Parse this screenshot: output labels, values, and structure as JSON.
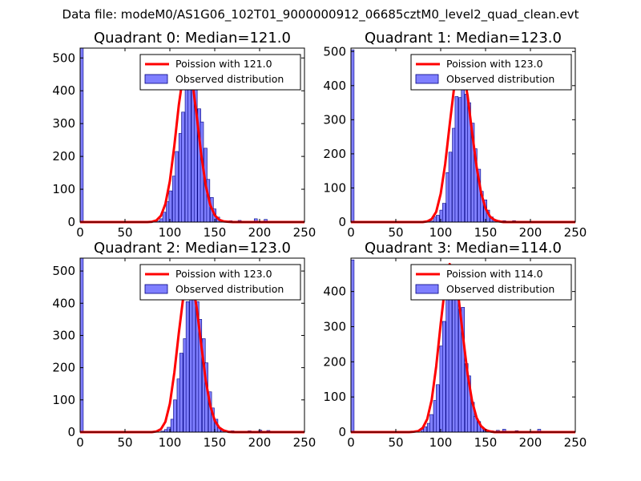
{
  "figure": {
    "suptitle": "Data file: modeM0/AS1G06_102T01_9000000912_06685cztM0_level2_quad_clean.evt",
    "legend_poisson_prefix": "Poission with",
    "legend_observed": "Observed distribution",
    "colors": {
      "poisson": "#ff0000",
      "observed_fill": "#7f7fff",
      "observed_edge": "#000080"
    }
  },
  "chart_data": [
    {
      "type": "bar+line",
      "title": "Quadrant 0: Median=121.0",
      "median": 121.0,
      "legend_poisson": "Poission with 121.0",
      "xlim": [
        0,
        250
      ],
      "ylim": [
        0,
        530
      ],
      "xticks": [
        0,
        50,
        100,
        150,
        200,
        250
      ],
      "yticks": [
        0,
        100,
        200,
        300,
        400,
        500
      ],
      "zero_bin": 530,
      "bin_width": 3.5,
      "observed": [
        [
          85,
          3
        ],
        [
          89,
          10
        ],
        [
          92,
          30
        ],
        [
          96,
          62
        ],
        [
          99,
          95
        ],
        [
          103,
          140
        ],
        [
          106,
          215
        ],
        [
          110,
          270
        ],
        [
          113,
          335
        ],
        [
          117,
          420
        ],
        [
          120,
          465
        ],
        [
          124,
          470
        ],
        [
          127,
          425
        ],
        [
          131,
          345
        ],
        [
          134,
          305
        ],
        [
          138,
          225
        ],
        [
          141,
          130
        ],
        [
          145,
          75
        ],
        [
          148,
          40
        ],
        [
          152,
          15
        ],
        [
          155,
          5
        ],
        [
          159,
          3
        ],
        [
          166,
          4
        ],
        [
          176,
          5
        ],
        [
          194,
          10
        ],
        [
          205,
          8
        ]
      ],
      "poisson_x": [
        80,
        85,
        90,
        95,
        100,
        105,
        110,
        115,
        120,
        125,
        130,
        135,
        140,
        145,
        150,
        155,
        160,
        165
      ],
      "poisson_y": [
        1,
        5,
        19,
        55,
        125,
        233,
        357,
        453,
        482,
        429,
        322,
        205,
        111,
        52,
        21,
        7,
        2,
        1
      ]
    },
    {
      "type": "bar+line",
      "title": "Quadrant 1: Median=123.0",
      "median": 123.0,
      "legend_poisson": "Poission with 123.0",
      "xlim": [
        0,
        250
      ],
      "ylim": [
        0,
        510
      ],
      "xticks": [
        0,
        50,
        100,
        150,
        200,
        250
      ],
      "yticks": [
        0,
        100,
        200,
        300,
        400,
        500
      ],
      "zero_bin": 505,
      "bin_width": 3.5,
      "observed": [
        [
          88,
          3
        ],
        [
          92,
          15
        ],
        [
          95,
          20
        ],
        [
          99,
          35
        ],
        [
          102,
          55
        ],
        [
          106,
          145
        ],
        [
          109,
          205
        ],
        [
          113,
          275
        ],
        [
          116,
          368
        ],
        [
          120,
          365
        ],
        [
          123,
          400
        ],
        [
          127,
          375
        ],
        [
          130,
          350
        ],
        [
          134,
          290
        ],
        [
          137,
          215
        ],
        [
          141,
          155
        ],
        [
          144,
          90
        ],
        [
          148,
          65
        ],
        [
          151,
          35
        ],
        [
          155,
          15
        ],
        [
          158,
          8
        ],
        [
          162,
          5
        ],
        [
          169,
          4
        ],
        [
          180,
          4
        ],
        [
          220,
          2
        ]
      ],
      "poisson_x": [
        80,
        85,
        90,
        95,
        100,
        105,
        110,
        115,
        120,
        125,
        130,
        135,
        140,
        145,
        150,
        155,
        160,
        165,
        170
      ],
      "poisson_y": [
        0,
        2,
        9,
        30,
        83,
        170,
        285,
        395,
        456,
        445,
        370,
        263,
        162,
        86,
        40,
        16,
        6,
        2,
        0
      ]
    },
    {
      "type": "bar+line",
      "title": "Quadrant 2: Median=123.0",
      "median": 123.0,
      "legend_poisson": "Poission with 123.0",
      "xlim": [
        0,
        250
      ],
      "ylim": [
        0,
        540
      ],
      "xticks": [
        0,
        50,
        100,
        150,
        200,
        250
      ],
      "yticks": [
        0,
        100,
        200,
        300,
        400,
        500
      ],
      "zero_bin": 540,
      "bin_width": 3.5,
      "observed": [
        [
          90,
          3
        ],
        [
          94,
          8
        ],
        [
          97,
          15
        ],
        [
          101,
          40
        ],
        [
          104,
          100
        ],
        [
          108,
          165
        ],
        [
          111,
          245
        ],
        [
          115,
          290
        ],
        [
          118,
          405
        ],
        [
          122,
          465
        ],
        [
          125,
          440
        ],
        [
          129,
          405
        ],
        [
          132,
          350
        ],
        [
          136,
          290
        ],
        [
          139,
          215
        ],
        [
          143,
          125
        ],
        [
          146,
          75
        ],
        [
          150,
          40
        ],
        [
          153,
          15
        ],
        [
          157,
          8
        ],
        [
          160,
          5
        ],
        [
          168,
          4
        ],
        [
          187,
          4
        ],
        [
          199,
          6
        ],
        [
          208,
          5
        ]
      ],
      "poisson_x": [
        80,
        85,
        90,
        95,
        100,
        105,
        110,
        115,
        120,
        125,
        130,
        135,
        140,
        145,
        150,
        155,
        160,
        165,
        170
      ],
      "poisson_y": [
        0,
        2,
        9,
        32,
        88,
        185,
        308,
        420,
        481,
        468,
        384,
        270,
        160,
        82,
        36,
        14,
        5,
        1,
        0
      ]
    },
    {
      "type": "bar+line",
      "title": "Quadrant 3: Median=114.0",
      "median": 114.0,
      "legend_poisson": "Poission with 114.0",
      "xlim": [
        0,
        250
      ],
      "ylim": [
        0,
        495
      ],
      "xticks": [
        0,
        50,
        100,
        150,
        200,
        250
      ],
      "yticks": [
        0,
        100,
        200,
        300,
        400
      ],
      "zero_bin": 490,
      "bin_width": 3.5,
      "observed": [
        [
          71,
          4
        ],
        [
          78,
          8
        ],
        [
          81,
          15
        ],
        [
          85,
          25
        ],
        [
          88,
          50
        ],
        [
          92,
          90
        ],
        [
          95,
          135
        ],
        [
          99,
          245
        ],
        [
          102,
          315
        ],
        [
          106,
          415
        ],
        [
          109,
          420
        ],
        [
          113,
          475
        ],
        [
          116,
          390
        ],
        [
          120,
          350
        ],
        [
          123,
          355
        ],
        [
          127,
          195
        ],
        [
          130,
          160
        ],
        [
          134,
          85
        ],
        [
          137,
          45
        ],
        [
          141,
          30
        ],
        [
          144,
          15
        ],
        [
          148,
          8
        ],
        [
          155,
          4
        ],
        [
          162,
          5
        ],
        [
          169,
          8
        ],
        [
          183,
          4
        ],
        [
          208,
          8
        ]
      ],
      "poisson_x": [
        70,
        75,
        80,
        85,
        90,
        95,
        100,
        105,
        110,
        115,
        120,
        125,
        130,
        135,
        140,
        145,
        150,
        155,
        160
      ],
      "poisson_y": [
        1,
        3,
        12,
        37,
        92,
        187,
        308,
        418,
        478,
        462,
        381,
        270,
        165,
        88,
        41,
        17,
        6,
        2,
        0
      ]
    }
  ]
}
